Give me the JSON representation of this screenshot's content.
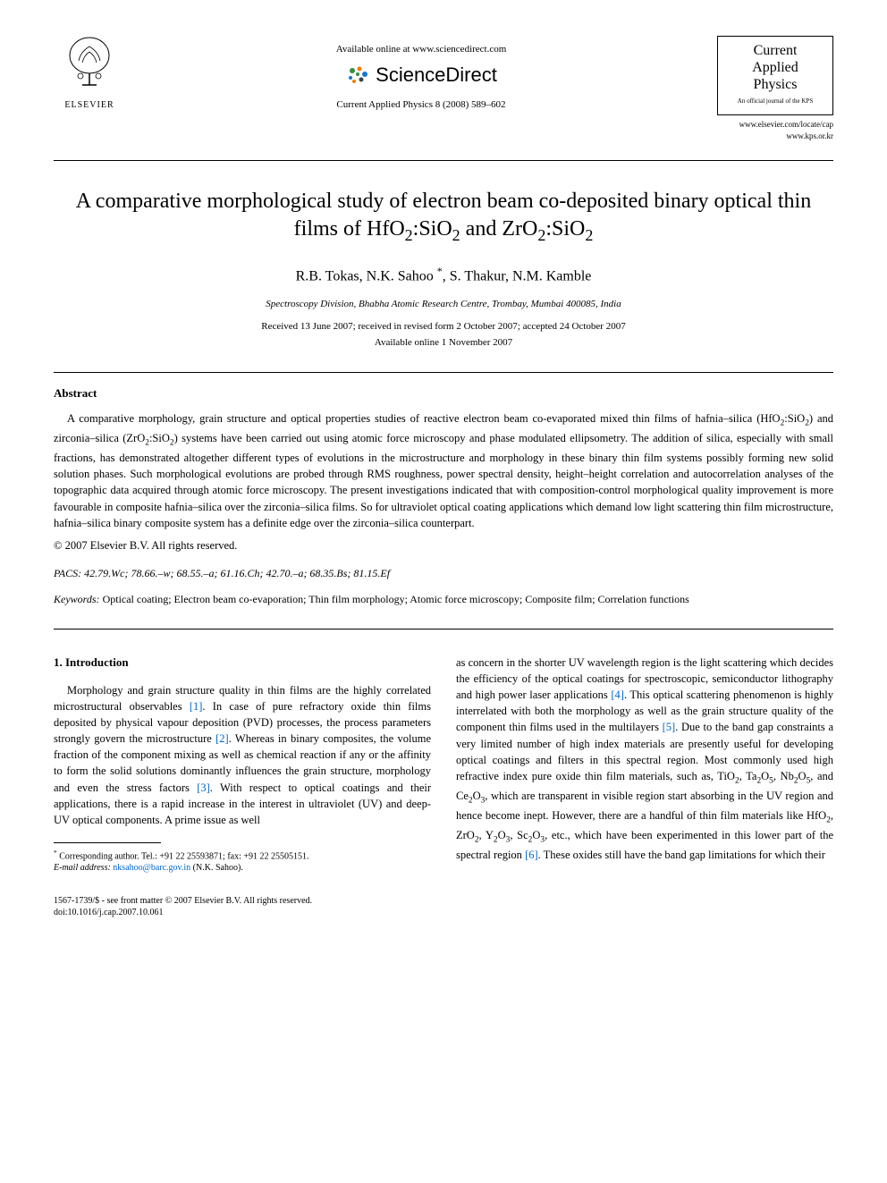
{
  "header": {
    "elsevier_label": "ELSEVIER",
    "available_online": "Available online at www.sciencedirect.com",
    "sciencedirect_label": "ScienceDirect",
    "journal_ref": "Current Applied Physics 8 (2008) 589–602",
    "journal_title_line1": "Current",
    "journal_title_line2": "Applied",
    "journal_title_line3": "Physics",
    "journal_subtitle": "An official journal of the KPS",
    "journal_url1": "www.elsevier.com/locate/cap",
    "journal_url2": "www.kps.or.kr"
  },
  "article": {
    "title_html": "A comparative morphological study of electron beam co-deposited binary optical thin films of HfO<sub>2</sub>:SiO<sub>2</sub> and ZrO<sub>2</sub>:SiO<sub>2</sub>",
    "authors_html": "R.B. Tokas, N.K. Sahoo <sup>*</sup>, S. Thakur, N.M. Kamble",
    "affiliation": "Spectroscopy Division, Bhabha Atomic Research Centre, Trombay, Mumbai 400085, India",
    "dates_line1": "Received 13 June 2007; received in revised form 2 October 2007; accepted 24 October 2007",
    "dates_line2": "Available online 1 November 2007"
  },
  "abstract": {
    "heading": "Abstract",
    "text_html": "A comparative morphology, grain structure and optical properties studies of reactive electron beam co-evaporated mixed thin films of hafnia–silica (HfO<sub>2</sub>:SiO<sub>2</sub>) and zirconia–silica (ZrO<sub>2</sub>:SiO<sub>2</sub>) systems have been carried out using atomic force microscopy and phase modulated ellipsometry. The addition of silica, especially with small fractions, has demonstrated altogether different types of evolutions in the microstructure and morphology in these binary thin film systems possibly forming new solid solution phases. Such morphological evolutions are probed through RMS roughness, power spectral density, height–height correlation and autocorrelation analyses of the topographic data acquired through atomic force microscopy. The present investigations indicated that with composition-control morphological quality improvement is more favourable in composite hafnia–silica over the zirconia–silica films. So for ultraviolet optical coating applications which demand low light scattering thin film microstructure, hafnia–silica binary composite system has a definite edge over the zirconia–silica counterpart.",
    "copyright": "© 2007 Elsevier B.V. All rights reserved.",
    "pacs_label": "PACS:",
    "pacs_codes": "42.79.Wc; 78.66.–w; 68.55.–a; 61.16.Ch; 42.70.–a; 68.35.Bs; 81.15.Ef",
    "keywords_label": "Keywords:",
    "keywords_text": "Optical coating; Electron beam co-evaporation; Thin film morphology; Atomic force microscopy; Composite film; Correlation functions"
  },
  "introduction": {
    "heading": "1. Introduction",
    "col1_html": "Morphology and grain structure quality in thin films are the highly correlated microstructural observables <span class=\"ref-link\">[1]</span>. In case of pure refractory oxide thin films deposited by physical vapour deposition (PVD) processes, the process parameters strongly govern the microstructure <span class=\"ref-link\">[2]</span>. Whereas in binary composites, the volume fraction of the component mixing as well as chemical reaction if any or the affinity to form the solid solutions dominantly influences the grain structure, morphology and even the stress factors <span class=\"ref-link\">[3]</span>. With respect to optical coatings and their applications, there is a rapid increase in the interest in ultraviolet (UV) and deep-UV optical components. A prime issue as well",
    "col2_html": "as concern in the shorter UV wavelength region is the light scattering which decides the efficiency of the optical coatings for spectroscopic, semiconductor lithography and high power laser applications <span class=\"ref-link\">[4]</span>. This optical scattering phenomenon is highly interrelated with both the morphology as well as the grain structure quality of the component thin films used in the multilayers <span class=\"ref-link\">[5]</span>. Due to the band gap constraints a very limited number of high index materials are presently useful for developing optical coatings and filters in this spectral region. Most commonly used high refractive index pure oxide thin film materials, such as, TiO<sub>2</sub>, Ta<sub>2</sub>O<sub>5</sub>, Nb<sub>2</sub>O<sub>5</sub>, and Ce<sub>2</sub>O<sub>3</sub>, which are transparent in visible region start absorbing in the UV region and hence become inept. However, there are a handful of thin film materials like HfO<sub>2</sub>, ZrO<sub>2</sub>, Y<sub>2</sub>O<sub>3</sub>, Sc<sub>2</sub>O<sub>3</sub>, etc., which have been experimented in this lower part of the spectral region <span class=\"ref-link\">[6]</span>. These oxides still have the band gap limitations for which their"
  },
  "footnote": {
    "line1_html": "<sup>*</sup> Corresponding author. Tel.: +91 22 25593871; fax: +91 22 25505151.",
    "line2_html": "<i>E-mail address:</i> <span class=\"ref-link\">nksahoo@barc.gov.in</span> (N.K. Sahoo)."
  },
  "footer": {
    "line1": "1567-1739/$ - see front matter © 2007 Elsevier B.V. All rights reserved.",
    "line2": "doi:10.1016/j.cap.2007.10.061"
  },
  "colors": {
    "text": "#000000",
    "background": "#ffffff",
    "link": "#0066cc",
    "sd_orange": "#f57c00",
    "sd_blue": "#1976d2",
    "sd_green": "#388e3c",
    "sd_dark": "#424242"
  }
}
